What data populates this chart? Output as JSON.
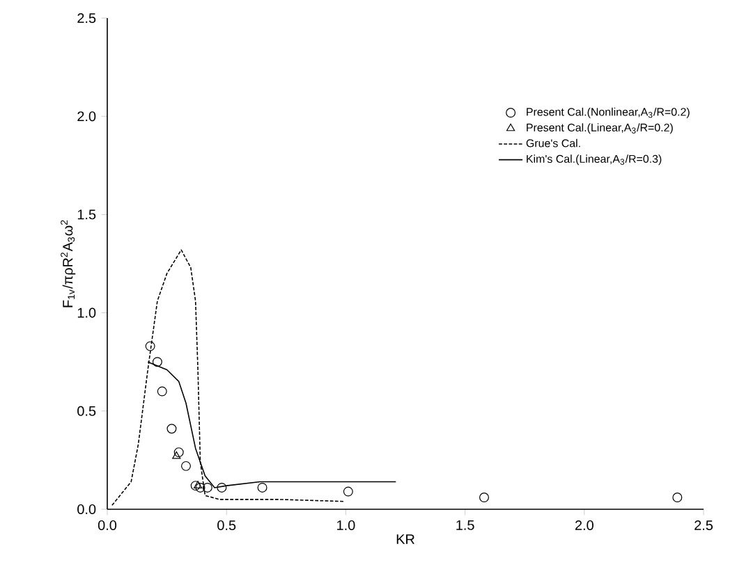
{
  "chart_data": {
    "type": "line",
    "xlabel": "KR",
    "ylabel": "F$_{1v}$/πρR$^{2}$A$_{3}$ω$^{2}$",
    "xlim": [
      0,
      2.5
    ],
    "ylim": [
      0,
      2.5
    ],
    "xticks": [
      {
        "value": 0,
        "label": "0.0"
      },
      0.5,
      {
        "value": 1,
        "label": "1.0"
      },
      1.5,
      {
        "value": 2,
        "label": "2.0"
      },
      2.5
    ],
    "yticks": [
      {
        "value": 0,
        "label": "0.0"
      },
      0.5,
      {
        "value": 1,
        "label": "1.0"
      },
      1.5,
      {
        "value": 2,
        "label": "2.0"
      },
      2.5
    ],
    "grid": false,
    "legend": "top right",
    "series": [
      {
        "name": "Present Cal.(Nonlinear,A$_{3}$/R=0.2)",
        "type": "scatter",
        "marker": "circle",
        "color": "#000000",
        "x": [
          0.18,
          0.21,
          0.23,
          0.27,
          0.3,
          0.33,
          0.37,
          0.39,
          0.42,
          0.48,
          0.65,
          1.01,
          1.58,
          2.39
        ],
        "values": [
          0.83,
          0.75,
          0.6,
          0.41,
          0.29,
          0.22,
          0.12,
          0.11,
          0.11,
          0.11,
          0.11,
          0.09,
          0.06,
          0.06
        ]
      },
      {
        "name": "Present Cal.(Linear,A$_{3}$/R=0.2)",
        "type": "scatter",
        "marker": "triangle",
        "color": "#000000",
        "x": [
          0.29,
          0.38
        ],
        "values": [
          0.27,
          0.12
        ]
      },
      {
        "name": "Grue's Cal.",
        "line_style": "dashed",
        "color": "#000000",
        "x": [
          0.02,
          0.1,
          0.13,
          0.17,
          0.21,
          0.25,
          0.31,
          0.35,
          0.37,
          0.38,
          0.39,
          0.41,
          0.47,
          0.72,
          0.99
        ],
        "values": [
          0.02,
          0.14,
          0.33,
          0.71,
          1.06,
          1.2,
          1.32,
          1.23,
          1.06,
          0.71,
          0.24,
          0.07,
          0.05,
          0.05,
          0.04
        ]
      },
      {
        "name": "Kim's Cal.(Linear,A$_{3}$/R=0.3)",
        "line_style": "solid",
        "color": "#000000",
        "x": [
          0.17,
          0.21,
          0.25,
          0.3,
          0.33,
          0.37,
          0.41,
          0.45,
          0.5,
          0.64,
          0.91,
          1.21
        ],
        "values": [
          0.75,
          0.73,
          0.71,
          0.65,
          0.54,
          0.31,
          0.17,
          0.11,
          0.12,
          0.14,
          0.14,
          0.14
        ]
      }
    ]
  }
}
